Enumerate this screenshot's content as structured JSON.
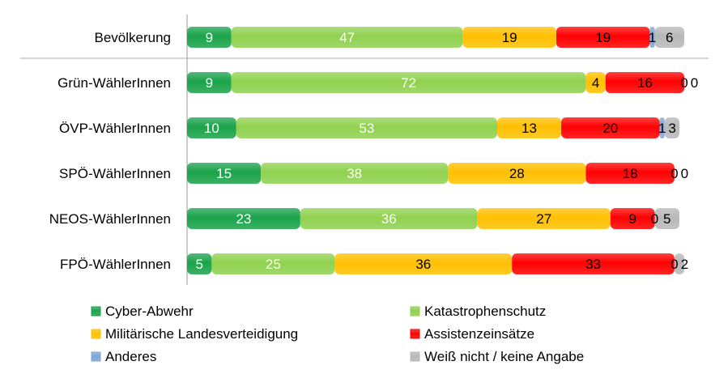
{
  "chart_data": {
    "type": "bar",
    "orientation": "horizontal",
    "stacked": true,
    "categories": [
      "Bevölkerung",
      "Grün-WählerInnen",
      "ÖVP-WählerInnen",
      "SPÖ-WählerInnen",
      "NEOS-WählerInnen",
      "FPÖ-WählerInnen"
    ],
    "series": [
      {
        "name": "Cyber-Abwehr",
        "color": "#1aa34a",
        "values": [
          9,
          9,
          10,
          15,
          23,
          5
        ]
      },
      {
        "name": "Katastrophenschutz",
        "color": "#8fd14f",
        "values": [
          47,
          72,
          53,
          38,
          36,
          25
        ]
      },
      {
        "name": "Militärische Landesverteidigung",
        "color": "#ffc000",
        "values": [
          19,
          4,
          13,
          28,
          27,
          36
        ]
      },
      {
        "name": "Assistenzeinsätze",
        "color": "#ff0000",
        "values": [
          19,
          16,
          20,
          18,
          9,
          33
        ]
      },
      {
        "name": "Anderes",
        "color": "#7ea6d8",
        "values": [
          1,
          0,
          1,
          0,
          0,
          0
        ]
      },
      {
        "name": "Weiß nicht / keine Angabe",
        "color": "#b8b8b8",
        "values": [
          6,
          0,
          3,
          0,
          5,
          2
        ]
      }
    ],
    "label_colors": [
      "#ffffff",
      "#ffffff",
      "#000000",
      "#000000",
      "#000000",
      "#000000"
    ],
    "xlim": [
      0,
      101
    ],
    "grid": false,
    "legend_position": "bottom",
    "data_labels": true
  }
}
